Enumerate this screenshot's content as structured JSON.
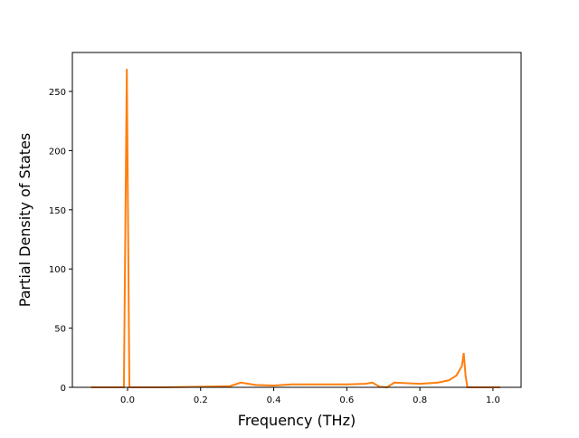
{
  "chart_data": {
    "type": "line",
    "xlabel": "Frequency (THz)",
    "ylabel": "Partial Density of States",
    "x": [
      -0.1,
      -0.01,
      -0.002,
      0.005,
      0.1,
      0.2,
      0.28,
      0.31,
      0.35,
      0.4,
      0.45,
      0.6,
      0.65,
      0.67,
      0.69,
      0.71,
      0.72,
      0.73,
      0.8,
      0.85,
      0.88,
      0.9,
      0.915,
      0.92,
      0.925,
      0.93,
      1.02
    ],
    "series": [
      {
        "color": "#ff7f0e",
        "values": [
          0,
          0,
          269,
          0,
          0,
          0.5,
          1,
          4,
          2,
          1.5,
          2.5,
          2.5,
          3,
          4,
          0.5,
          0,
          2,
          4,
          3,
          4,
          6,
          10,
          18,
          29,
          10,
          0,
          0
        ]
      }
    ],
    "xlim": [
      -0.151,
      1.077
    ],
    "ylim": [
      0,
      282.9
    ],
    "xticks": [
      {
        "value": 0,
        "label": "0.0"
      },
      0.2,
      0.4,
      0.6,
      0.8,
      {
        "value": 1,
        "label": "1.0"
      }
    ],
    "yticks": [
      0,
      50,
      100,
      150,
      200,
      250
    ]
  }
}
